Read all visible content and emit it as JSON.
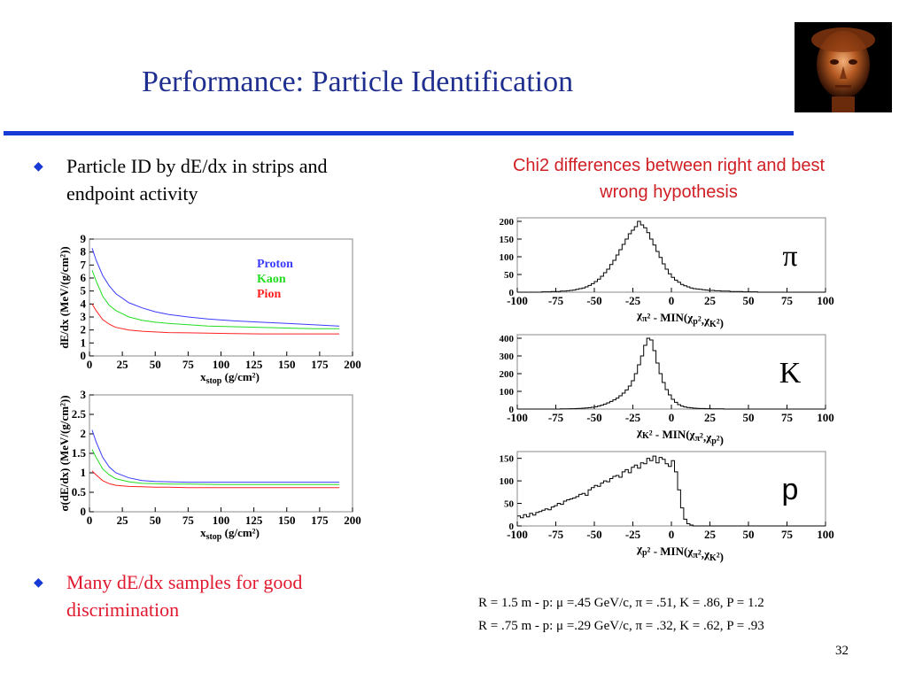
{
  "title": "Performance:  Particle Identification",
  "bullets": [
    {
      "text": "Particle ID by dE/dx in strips and endpoint activity",
      "color": "#000000"
    },
    {
      "text": "Many dE/dx samples for good discrimination",
      "color": "#e0192f"
    }
  ],
  "right_title": "Chi2 differences between right and best wrong hypothesis",
  "notes": [
    "R = 1.5 m -  p: μ =.45 GeV/c,  π = .51,  K = .86,  P = 1.2",
    "R = .75 m -  p: μ =.29 GeV/c,  π = .32,  K = .62,  P = .93"
  ],
  "page_number": "32",
  "chart_data": [
    {
      "type": "line",
      "ylabel": "dE/dx (MeV/(g/cm²))",
      "xlabel": "x",
      "xlabel_sub": "stop",
      "xlabel_unit": " (g/cm²)",
      "xlim": [
        0,
        200
      ],
      "ylim": [
        0,
        9
      ],
      "xticks": [
        0,
        25,
        50,
        75,
        100,
        125,
        150,
        175,
        200
      ],
      "yticks": [
        0,
        1,
        2,
        3,
        4,
        5,
        6,
        7,
        8,
        9
      ],
      "legend": "top-right",
      "series": [
        {
          "name": "Proton",
          "color": "#3b3bff",
          "x": [
            2,
            5,
            10,
            15,
            20,
            30,
            40,
            50,
            60,
            75,
            90,
            110,
            130,
            150,
            170,
            190
          ],
          "y": [
            8.3,
            7.4,
            6.2,
            5.4,
            4.8,
            4.1,
            3.7,
            3.4,
            3.2,
            3.0,
            2.85,
            2.7,
            2.6,
            2.5,
            2.4,
            2.3
          ]
        },
        {
          "name": "Kaon",
          "color": "#22dd22",
          "x": [
            2,
            5,
            10,
            15,
            20,
            30,
            40,
            50,
            60,
            75,
            90,
            110,
            130,
            150,
            170,
            190
          ],
          "y": [
            6.6,
            5.8,
            4.6,
            3.9,
            3.5,
            3.0,
            2.75,
            2.6,
            2.5,
            2.4,
            2.3,
            2.25,
            2.2,
            2.15,
            2.1,
            2.1
          ]
        },
        {
          "name": "Pion",
          "color": "#ff2020",
          "x": [
            2,
            5,
            10,
            15,
            20,
            30,
            40,
            50,
            60,
            75,
            90,
            110,
            130,
            150,
            170,
            190
          ],
          "y": [
            4.0,
            3.5,
            2.8,
            2.45,
            2.2,
            2.0,
            1.9,
            1.85,
            1.8,
            1.78,
            1.75,
            1.72,
            1.7,
            1.7,
            1.7,
            1.7
          ]
        }
      ]
    },
    {
      "type": "line",
      "ylabel": "σ(dE/dx) (MeV/(g/cm²))",
      "xlabel": "x",
      "xlabel_sub": "stop",
      "xlabel_unit": " (g/cm²)",
      "xlim": [
        0,
        200
      ],
      "ylim": [
        0,
        3
      ],
      "xticks": [
        0,
        25,
        50,
        75,
        100,
        125,
        150,
        175,
        200
      ],
      "yticks": [
        0,
        0.5,
        1,
        1.5,
        2,
        2.5,
        3
      ],
      "ytick_labels": [
        "0",
        "0.5",
        "1",
        "1.5",
        "2",
        "2.5",
        "3"
      ],
      "series": [
        {
          "color": "#3b3bff",
          "x": [
            2,
            5,
            10,
            15,
            20,
            30,
            40,
            50,
            60,
            75,
            100,
            125,
            150,
            175,
            190
          ],
          "y": [
            2.1,
            1.8,
            1.4,
            1.15,
            1.0,
            0.87,
            0.8,
            0.78,
            0.77,
            0.76,
            0.76,
            0.76,
            0.76,
            0.76,
            0.76
          ]
        },
        {
          "color": "#22dd22",
          "x": [
            2,
            5,
            10,
            15,
            20,
            30,
            40,
            50,
            60,
            75,
            100,
            125,
            150,
            175,
            190
          ],
          "y": [
            1.6,
            1.4,
            1.1,
            0.95,
            0.85,
            0.77,
            0.73,
            0.72,
            0.71,
            0.71,
            0.7,
            0.7,
            0.7,
            0.7,
            0.7
          ]
        },
        {
          "color": "#ff2020",
          "x": [
            2,
            5,
            10,
            15,
            20,
            30,
            40,
            50,
            60,
            75,
            100,
            125,
            150,
            175,
            190
          ],
          "y": [
            1.05,
            0.95,
            0.8,
            0.72,
            0.68,
            0.65,
            0.64,
            0.63,
            0.63,
            0.62,
            0.62,
            0.62,
            0.62,
            0.62,
            0.62
          ]
        }
      ]
    },
    {
      "type": "bar",
      "label": "π",
      "label_font": "serif",
      "xlabel_parts": [
        "χ",
        "π",
        "² - MIN(",
        "χ",
        "p",
        "²,",
        "χ",
        "K",
        "²)"
      ],
      "xlim": [
        -100,
        100
      ],
      "ylim": [
        0,
        210
      ],
      "xticks": [
        -100,
        -75,
        -50,
        -25,
        0,
        25,
        50,
        75,
        100
      ],
      "yticks": [
        0,
        50,
        100,
        150,
        200
      ],
      "bin_edges_start": -100,
      "bin_width": 2,
      "values": [
        0,
        0,
        0,
        0,
        0,
        0,
        0,
        0,
        1,
        1,
        1,
        2,
        2,
        2,
        3,
        3,
        4,
        5,
        6,
        8,
        10,
        12,
        15,
        19,
        24,
        30,
        37,
        45,
        55,
        65,
        78,
        90,
        105,
        120,
        135,
        150,
        165,
        175,
        185,
        200,
        190,
        182,
        168,
        150,
        133,
        115,
        98,
        80,
        65,
        52,
        42,
        34,
        28,
        22,
        18,
        15,
        12,
        10,
        9,
        8,
        7,
        6,
        5,
        5,
        4,
        4,
        3,
        3,
        3,
        2,
        2,
        2,
        2,
        1,
        1,
        1,
        1,
        1,
        0,
        0,
        0,
        0,
        0,
        0,
        0,
        0,
        0,
        0,
        0,
        0,
        0,
        0,
        0,
        0,
        0,
        0,
        0,
        0,
        0,
        0
      ]
    },
    {
      "type": "bar",
      "label": "K",
      "label_font": "serif",
      "xlabel_parts": [
        "χ",
        "K",
        "² - MIN(",
        "χ",
        "π",
        "²,",
        "χ",
        "p",
        "²)"
      ],
      "xlim": [
        -100,
        100
      ],
      "ylim": [
        0,
        420
      ],
      "xticks": [
        -100,
        -75,
        -50,
        -25,
        0,
        25,
        50,
        75,
        100
      ],
      "yticks": [
        0,
        100,
        200,
        300,
        400
      ],
      "bin_edges_start": -100,
      "bin_width": 2,
      "values": [
        0,
        0,
        0,
        0,
        0,
        0,
        0,
        0,
        0,
        0,
        0,
        0,
        0,
        0,
        1,
        1,
        1,
        2,
        2,
        3,
        4,
        5,
        6,
        8,
        10,
        13,
        17,
        22,
        28,
        35,
        43,
        52,
        62,
        75,
        90,
        108,
        130,
        160,
        200,
        250,
        300,
        360,
        400,
        390,
        330,
        260,
        200,
        150,
        110,
        80,
        55,
        38,
        25,
        17,
        12,
        9,
        7,
        5,
        4,
        3,
        3,
        2,
        2,
        1,
        1,
        1,
        1,
        0,
        0,
        0,
        0,
        0,
        0,
        0,
        0,
        0,
        0,
        0,
        0,
        0,
        0,
        0,
        0,
        0,
        0,
        0,
        0,
        0,
        0,
        0,
        0,
        0,
        0,
        0,
        0,
        0,
        0,
        0,
        0,
        0
      ]
    },
    {
      "type": "bar",
      "label": "p",
      "label_font": "sans",
      "xlabel_parts": [
        "χ",
        "p",
        "² - MIN(",
        "χ",
        "π",
        "²,",
        "χ",
        "K",
        "²)"
      ],
      "xlim": [
        -100,
        100
      ],
      "ylim": [
        0,
        165
      ],
      "xticks": [
        -100,
        -75,
        -50,
        -25,
        0,
        25,
        50,
        75,
        100
      ],
      "yticks": [
        0,
        50,
        100,
        150
      ],
      "bin_edges_start": -100,
      "bin_width": 2,
      "values": [
        22,
        18,
        25,
        20,
        28,
        24,
        30,
        32,
        35,
        38,
        36,
        42,
        45,
        50,
        48,
        55,
        58,
        60,
        62,
        65,
        70,
        72,
        68,
        80,
        85,
        90,
        88,
        95,
        100,
        98,
        105,
        110,
        112,
        108,
        120,
        125,
        118,
        130,
        135,
        128,
        140,
        138,
        150,
        145,
        155,
        140,
        152,
        148,
        138,
        132,
        145,
        120,
        80,
        40,
        15,
        5,
        2,
        0,
        0,
        0,
        0,
        0,
        0,
        0,
        0,
        0,
        0,
        0,
        0,
        0,
        0,
        0,
        0,
        0,
        0,
        0,
        0,
        0,
        0,
        0,
        0,
        0,
        0,
        0,
        0,
        0,
        0,
        0,
        0,
        0,
        0,
        0,
        0,
        0,
        0,
        0,
        0,
        0,
        0,
        0
      ]
    }
  ]
}
